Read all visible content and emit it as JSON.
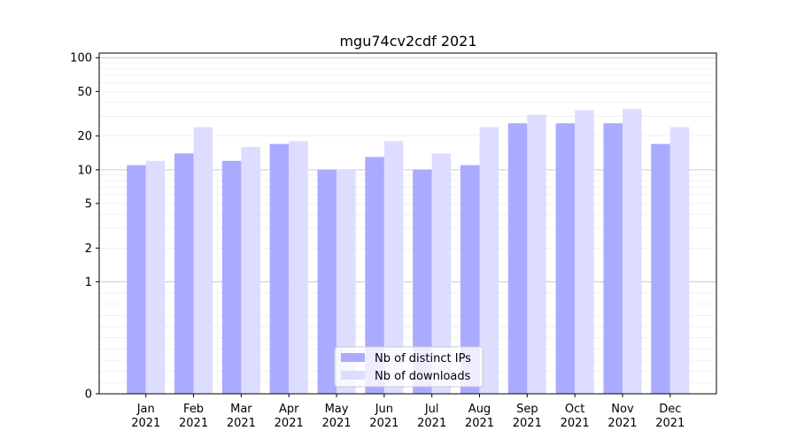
{
  "chart_data": {
    "type": "bar",
    "title": "mgu74cv2cdf 2021",
    "xlabel": "",
    "ylabel": "",
    "y_scale": "symlog",
    "y_tick_labels": [
      "0",
      "1",
      "2",
      "5",
      "10",
      "20",
      "50",
      "100"
    ],
    "y_tick_values": [
      0,
      1,
      2,
      5,
      10,
      20,
      50,
      100
    ],
    "categories": [
      [
        "Jan",
        "2021"
      ],
      [
        "Feb",
        "2021"
      ],
      [
        "Mar",
        "2021"
      ],
      [
        "Apr",
        "2021"
      ],
      [
        "May",
        "2021"
      ],
      [
        "Jun",
        "2021"
      ],
      [
        "Jul",
        "2021"
      ],
      [
        "Aug",
        "2021"
      ],
      [
        "Sep",
        "2021"
      ],
      [
        "Oct",
        "2021"
      ],
      [
        "Nov",
        "2021"
      ],
      [
        "Dec",
        "2021"
      ]
    ],
    "series": [
      {
        "name": "Nb of distinct IPs",
        "color": "#aaaaff",
        "values": [
          11,
          14,
          12,
          17,
          10,
          13,
          10,
          11,
          26,
          26,
          26,
          17
        ]
      },
      {
        "name": "Nb of downloads",
        "color": "#ddddff",
        "values": [
          12,
          24,
          16,
          18,
          10,
          18,
          14,
          24,
          31,
          34,
          35,
          24
        ]
      }
    ],
    "ylim": [
      0,
      110
    ],
    "grid": true,
    "legend_position": "bottom-center"
  }
}
